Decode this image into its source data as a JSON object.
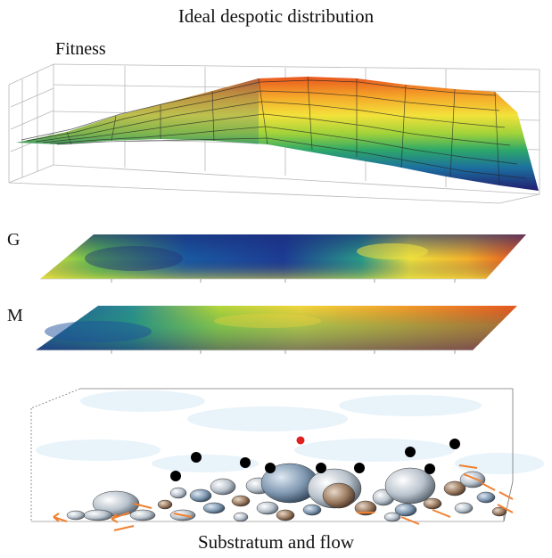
{
  "figure": {
    "title": "Ideal despotic distribution",
    "panels": {
      "fitness_label": "Fitness",
      "g_label": "G",
      "m_label": "M",
      "substratum_caption": "Substratum and flow"
    }
  },
  "colors": {
    "colormap": [
      "#2b1a7a",
      "#1f3f9e",
      "#1a7aa8",
      "#1fa08a",
      "#3ab85a",
      "#9fd23a",
      "#f5e23a",
      "#f6a82a",
      "#e84c1c"
    ],
    "fish_black": "#000000",
    "fish_red": "#e02020",
    "flow_arrow": "#f08030"
  }
}
